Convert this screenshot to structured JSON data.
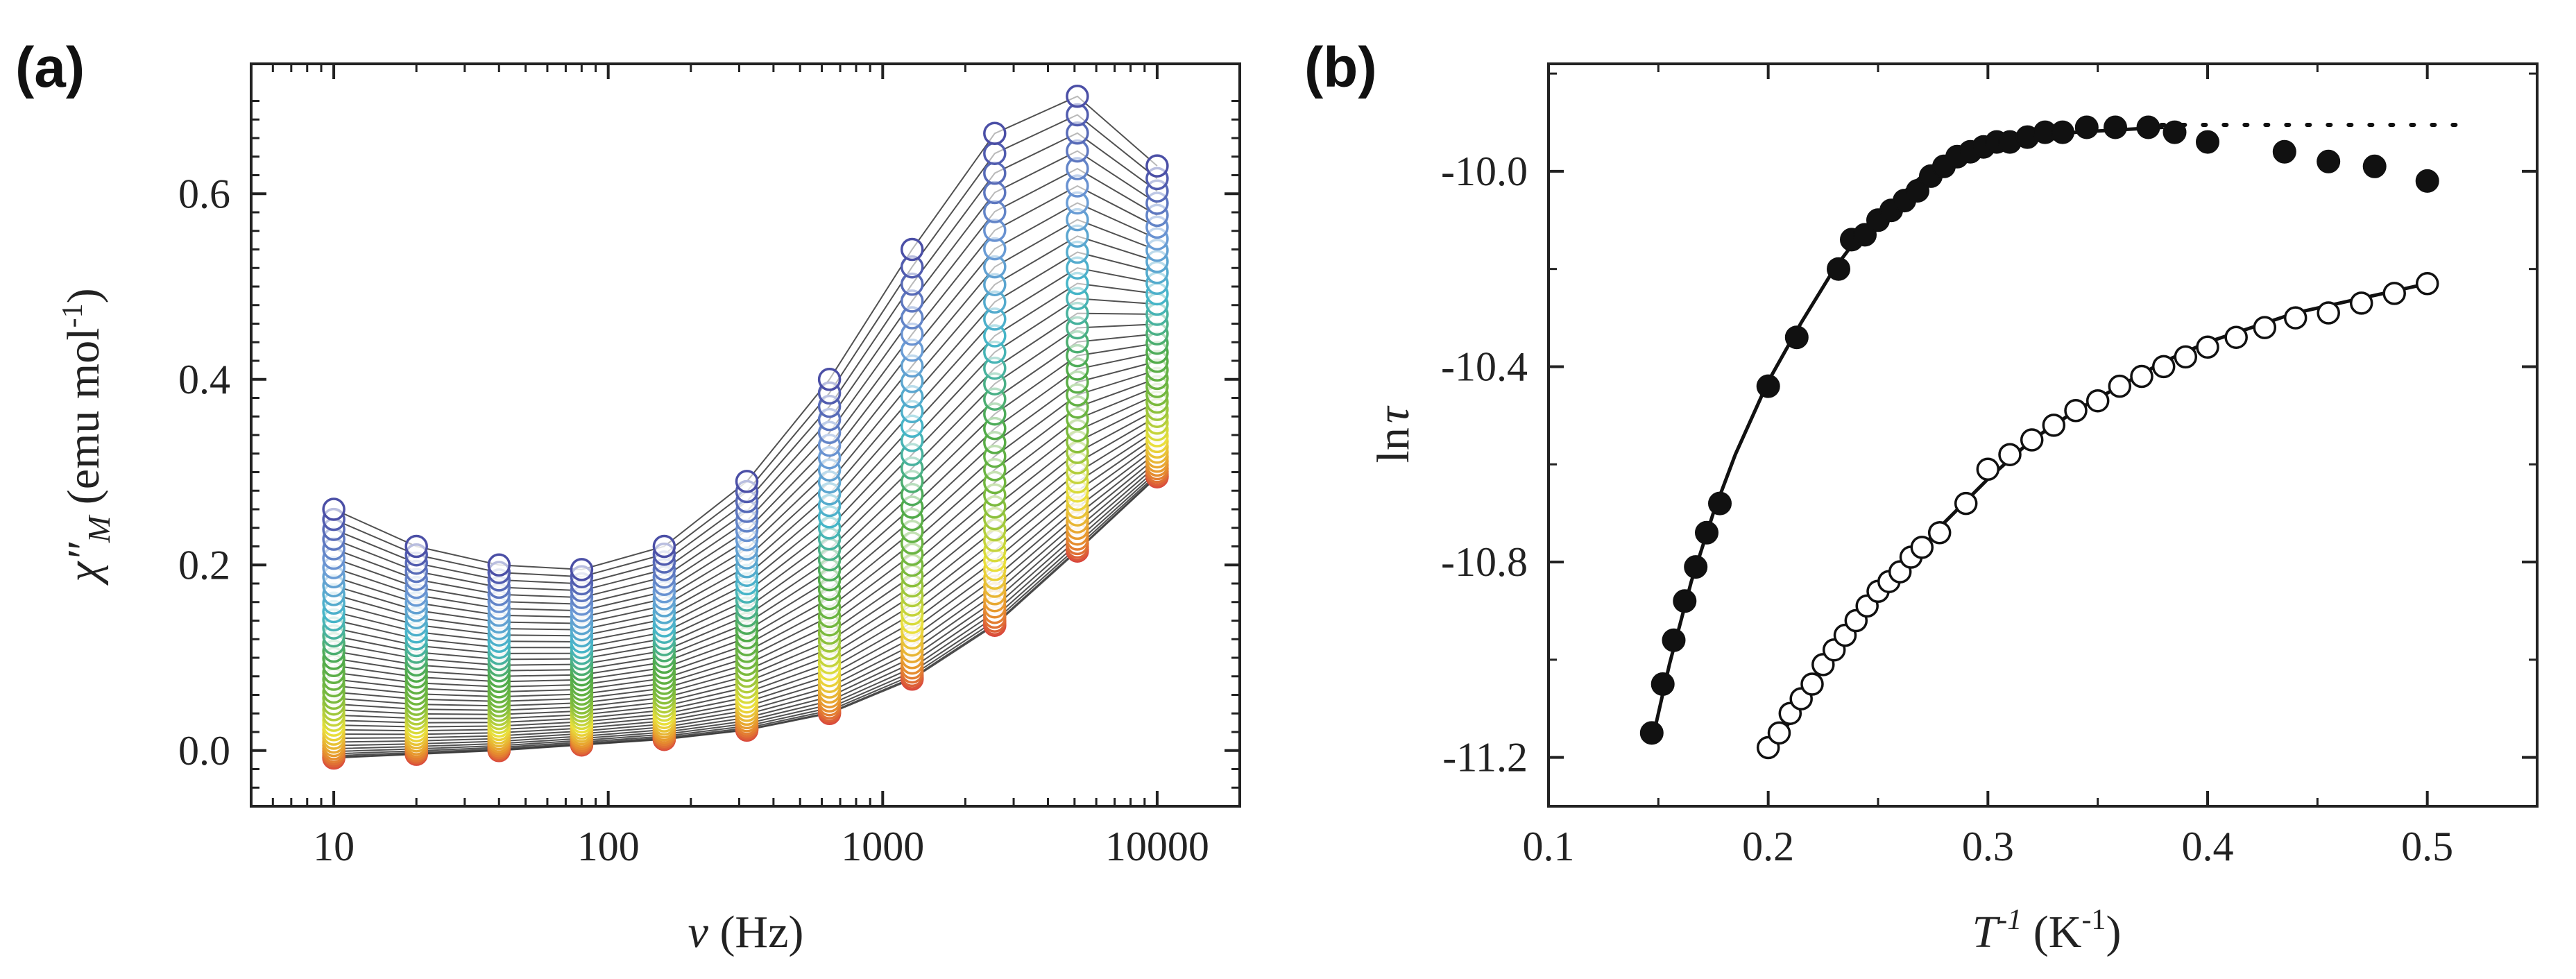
{
  "chart_data": [
    {
      "panel": "(a)",
      "type": "line",
      "xscale": "log",
      "xlabel_symbol": "ν",
      "xlabel_unit": " (Hz)",
      "ylabel_base": "χ″",
      "ylabel_sub": "M",
      "ylabel_unit": " (emu mol",
      "ylabel_unit_sup": "-1",
      "ylabel_unit_close": ")",
      "xlim": [
        5,
        20000
      ],
      "ylim": [
        -0.06,
        0.74
      ],
      "x_ticks": [
        10,
        100,
        1000,
        10000
      ],
      "x_tick_labels": [
        "10",
        "100",
        "1000",
        "10000"
      ],
      "y_ticks": [
        0.0,
        0.2,
        0.4,
        0.6
      ],
      "y_tick_labels": [
        "0.0",
        "0.2",
        "0.4",
        "0.6"
      ],
      "frequencies": [
        10,
        20,
        40,
        80,
        160,
        320,
        640,
        1280,
        2560,
        5120,
        10000
      ],
      "temperature_curves": 40,
      "curve_high_T": [
        -0.008,
        -0.004,
        0.0,
        0.006,
        0.012,
        0.022,
        0.04,
        0.077,
        0.135,
        0.215,
        0.295
      ],
      "curve_low_T": [
        0.26,
        0.22,
        0.2,
        0.195,
        0.22,
        0.29,
        0.4,
        0.54,
        0.665,
        0.705,
        0.63
      ],
      "marker": "open circle",
      "marker_color_scale": [
        "#d8453c",
        "#e7942e",
        "#e9e13b",
        "#7dbb3c",
        "#4faa4a",
        "#45b6c8",
        "#6c9ad6",
        "#4b4fa6"
      ],
      "line_color": "#333333"
    },
    {
      "panel": "(b)",
      "type": "scatter",
      "xlabel_symbol": "T",
      "xlabel_sup": "-1",
      "xlabel_unit": " (K",
      "xlabel_unit_sup": "-1",
      "xlabel_unit_close": ")",
      "ylabel_prefix": "ln",
      "ylabel_symbol": "τ",
      "xlim": [
        0.1,
        0.55
      ],
      "ylim": [
        -11.3,
        -9.78
      ],
      "x_ticks": [
        0.1,
        0.2,
        0.3,
        0.4,
        0.5
      ],
      "x_tick_labels": [
        "0.1",
        "0.2",
        "0.3",
        "0.4",
        "0.5"
      ],
      "y_ticks": [
        -11.2,
        -10.8,
        -10.4,
        -10.0
      ],
      "y_tick_labels": [
        "-11.2",
        "-10.8",
        "-10.4",
        "-10.0"
      ],
      "series": [
        {
          "name": "filled",
          "marker": "filled circle",
          "x": [
            0.147,
            0.152,
            0.157,
            0.162,
            0.167,
            0.172,
            0.178,
            0.2,
            0.213,
            0.232,
            0.238,
            0.244,
            0.25,
            0.256,
            0.262,
            0.268,
            0.274,
            0.28,
            0.286,
            0.292,
            0.298,
            0.304,
            0.31,
            0.318,
            0.326,
            0.334,
            0.345,
            0.358,
            0.373,
            0.385,
            0.4,
            0.435,
            0.455,
            0.476,
            0.5
          ],
          "y": [
            -11.15,
            -11.05,
            -10.96,
            -10.88,
            -10.81,
            -10.74,
            -10.68,
            -10.44,
            -10.34,
            -10.2,
            -10.14,
            -10.13,
            -10.1,
            -10.08,
            -10.06,
            -10.04,
            -10.01,
            -9.99,
            -9.97,
            -9.96,
            -9.95,
            -9.94,
            -9.94,
            -9.93,
            -9.92,
            -9.92,
            -9.91,
            -9.91,
            -9.91,
            -9.92,
            -9.94,
            -9.96,
            -9.98,
            -9.99,
            -10.02
          ]
        },
        {
          "name": "open",
          "marker": "open circle",
          "x": [
            0.2,
            0.205,
            0.21,
            0.215,
            0.22,
            0.225,
            0.23,
            0.235,
            0.24,
            0.245,
            0.25,
            0.255,
            0.26,
            0.265,
            0.27,
            0.278,
            0.29,
            0.3,
            0.31,
            0.32,
            0.33,
            0.34,
            0.35,
            0.36,
            0.37,
            0.38,
            0.39,
            0.4,
            0.413,
            0.426,
            0.44,
            0.455,
            0.47,
            0.485,
            0.5
          ],
          "y": [
            -11.18,
            -11.15,
            -11.11,
            -11.08,
            -11.05,
            -11.01,
            -10.98,
            -10.95,
            -10.92,
            -10.89,
            -10.86,
            -10.84,
            -10.82,
            -10.79,
            -10.77,
            -10.74,
            -10.68,
            -10.61,
            -10.58,
            -10.55,
            -10.52,
            -10.49,
            -10.47,
            -10.44,
            -10.42,
            -10.4,
            -10.38,
            -10.36,
            -10.34,
            -10.32,
            -10.3,
            -10.29,
            -10.27,
            -10.25,
            -10.23
          ]
        }
      ],
      "fit_filled": {
        "x": [
          0.147,
          0.155,
          0.165,
          0.175,
          0.185,
          0.2,
          0.215,
          0.23,
          0.245,
          0.26,
          0.275,
          0.29,
          0.305,
          0.32,
          0.34,
          0.36,
          0.38
        ],
        "y": [
          -11.17,
          -11.01,
          -10.84,
          -10.7,
          -10.58,
          -10.43,
          -10.31,
          -10.2,
          -10.11,
          -10.05,
          -9.99,
          -9.96,
          -9.94,
          -9.93,
          -9.92,
          -9.915,
          -9.91
        ]
      },
      "fit_open": {
        "x": [
          0.2,
          0.22,
          0.24,
          0.26,
          0.28,
          0.3,
          0.32,
          0.34,
          0.36,
          0.38,
          0.4,
          0.42,
          0.44,
          0.46,
          0.48,
          0.5
        ],
        "y": [
          -11.2,
          -11.05,
          -10.93,
          -10.82,
          -10.72,
          -10.63,
          -10.55,
          -10.49,
          -10.44,
          -10.39,
          -10.35,
          -10.32,
          -10.29,
          -10.27,
          -10.25,
          -10.23
        ]
      },
      "dotted_line": {
        "x": [
          0.36,
          0.52
        ],
        "y": [
          -9.905,
          -9.905
        ]
      }
    }
  ]
}
